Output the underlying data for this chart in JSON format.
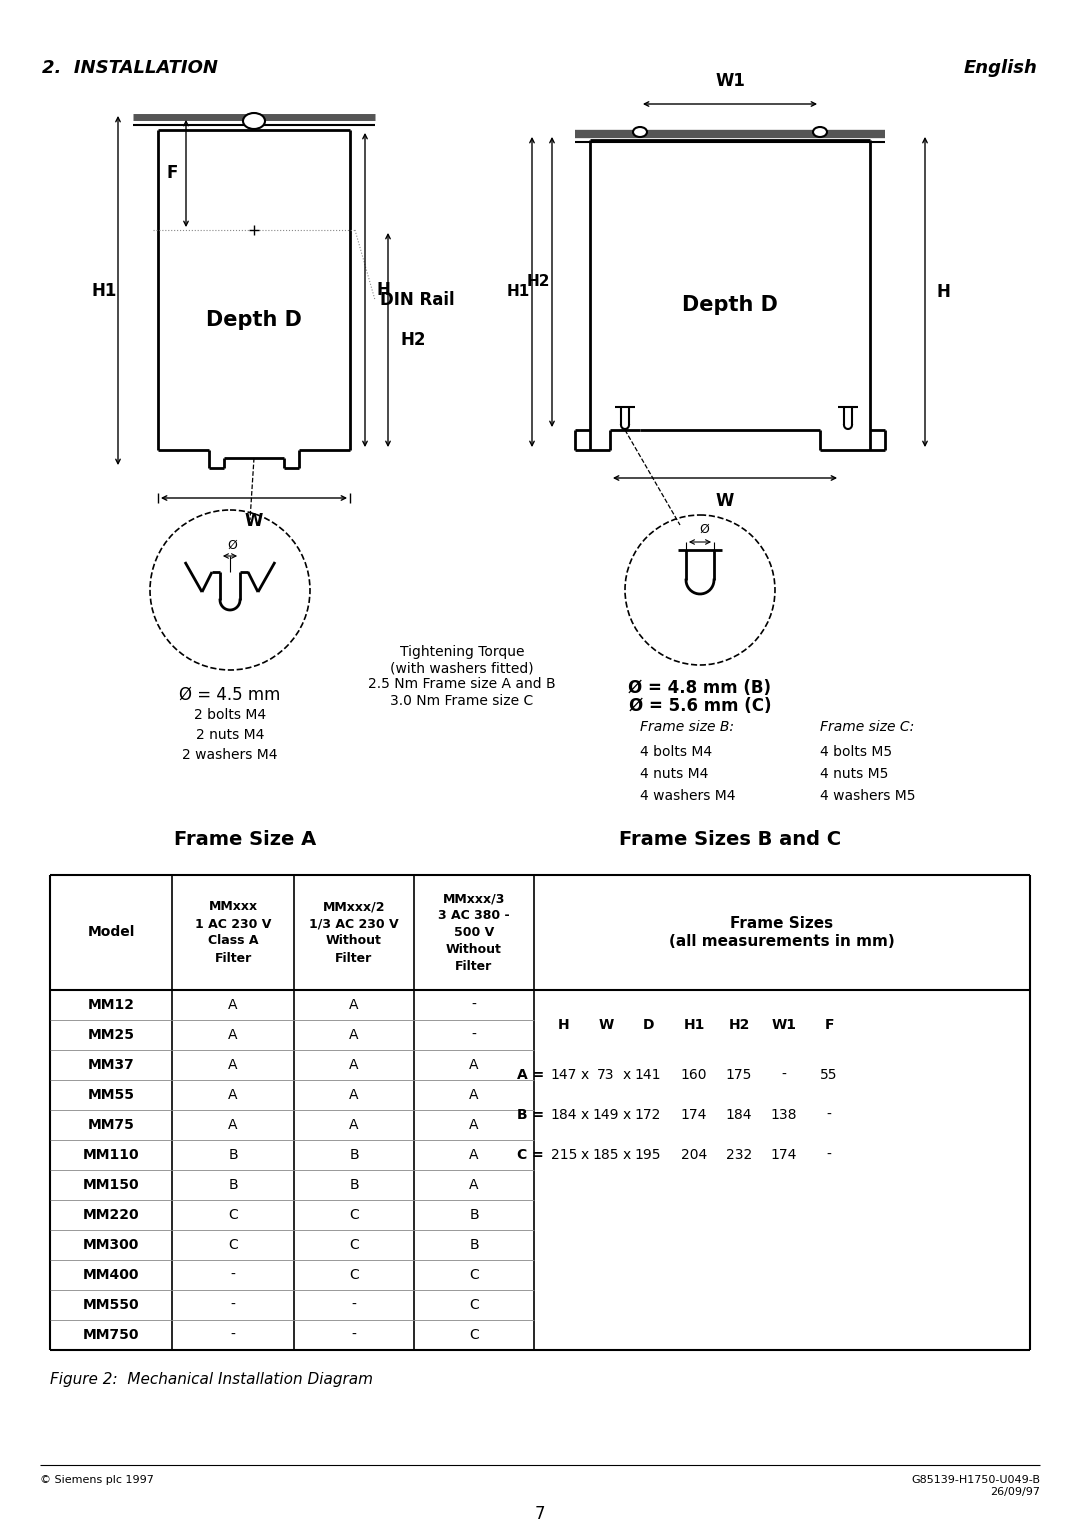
{
  "title_left": "2.  INSTALLATION",
  "title_right": "English",
  "figure_caption": "Figure 2:  Mechanical Installation Diagram",
  "footer_left": "© Siemens plc 1997",
  "footer_right": "G85139-H1750-U049-B\n26/09/97",
  "page_number": "7",
  "din_rail_label": "DIN Rail",
  "depth_d_label": "Depth D",
  "frame_size_a_label": "Frame Size A",
  "frame_sizes_bc_label": "Frame Sizes B and C",
  "tightening_torque": "Tightening Torque\n(with washers fitted)\n2.5 Nm Frame size A and B\n3.0 Nm Frame size C",
  "hole_a_label": "Ø = 4.5 mm",
  "hole_b_label": "Ø = 4.8 mm (B)",
  "hole_c_label": "Ø = 5.6 mm (C)",
  "frame_size_b_heading": "Frame size B:",
  "frame_size_c_heading": "Frame size C:",
  "frame_b_items": [
    "4 bolts M4",
    "4 nuts M4",
    "4 washers M4"
  ],
  "frame_c_items": [
    "4 bolts M5",
    "4 nuts M5",
    "4 washers M5"
  ],
  "frame_a_items": [
    "2 bolts M4",
    "2 nuts M4",
    "2 washers M4"
  ],
  "table_header_col1": "Model",
  "table_header_col2": "MMxxx\n1 AC 230 V\nClass A\nFilter",
  "table_header_col3": "MMxxx/2\n1/3 AC 230 V\nWithout\nFilter",
  "table_header_col4": "MMxxx/3\n3 AC 380 -\n500 V\nWithout\nFilter",
  "table_header_col5": "Frame Sizes\n(all measurements in mm)",
  "table_rows": [
    [
      "MM12",
      "A",
      "A",
      "-"
    ],
    [
      "MM25",
      "A",
      "A",
      "-"
    ],
    [
      "MM37",
      "A",
      "A",
      "A"
    ],
    [
      "MM55",
      "A",
      "A",
      "A"
    ],
    [
      "MM75",
      "A",
      "A",
      "A"
    ],
    [
      "MM110",
      "B",
      "B",
      "A"
    ],
    [
      "MM150",
      "B",
      "B",
      "A"
    ],
    [
      "MM220",
      "C",
      "C",
      "B"
    ],
    [
      "MM300",
      "C",
      "C",
      "B"
    ],
    [
      "MM400",
      "-",
      "C",
      "C"
    ],
    [
      "MM550",
      "-",
      "-",
      "C"
    ],
    [
      "MM750",
      "-",
      "-",
      "C"
    ]
  ],
  "bg_color": "#ffffff",
  "line_color": "#000000",
  "text_color": "#000000"
}
